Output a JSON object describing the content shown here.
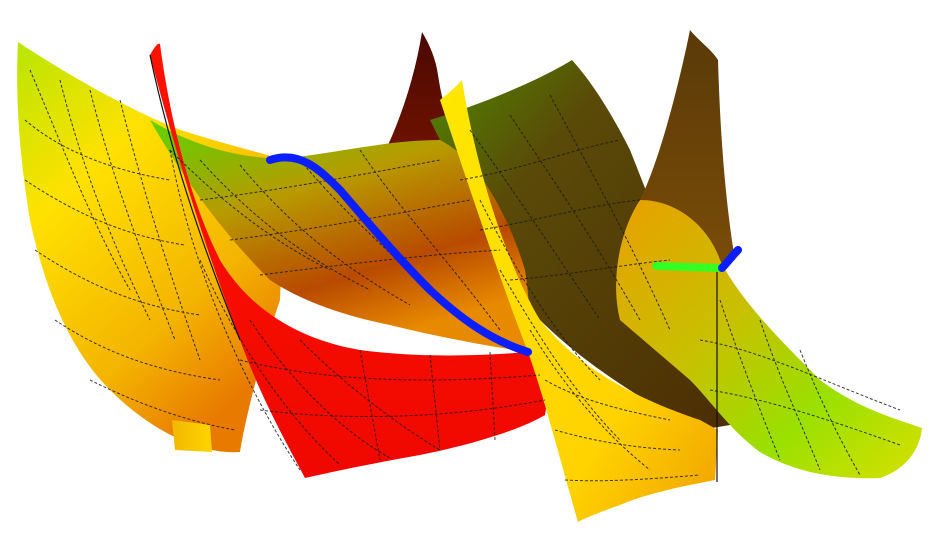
{
  "scene": {
    "background": "#ffffff",
    "surface_colors": {
      "yellow": "#ffe100",
      "orange": "#f08a00",
      "green": "#4fd000",
      "lime": "#b8e600",
      "red": "#ff0a00",
      "dark_red": "#7a1000",
      "brown": "#5a3a08",
      "olive": "#6b5a10"
    },
    "curve_colors": {
      "blue": "#0a1eff",
      "green": "#33ff22"
    },
    "mesh_line_color": "#1a1a1a"
  }
}
